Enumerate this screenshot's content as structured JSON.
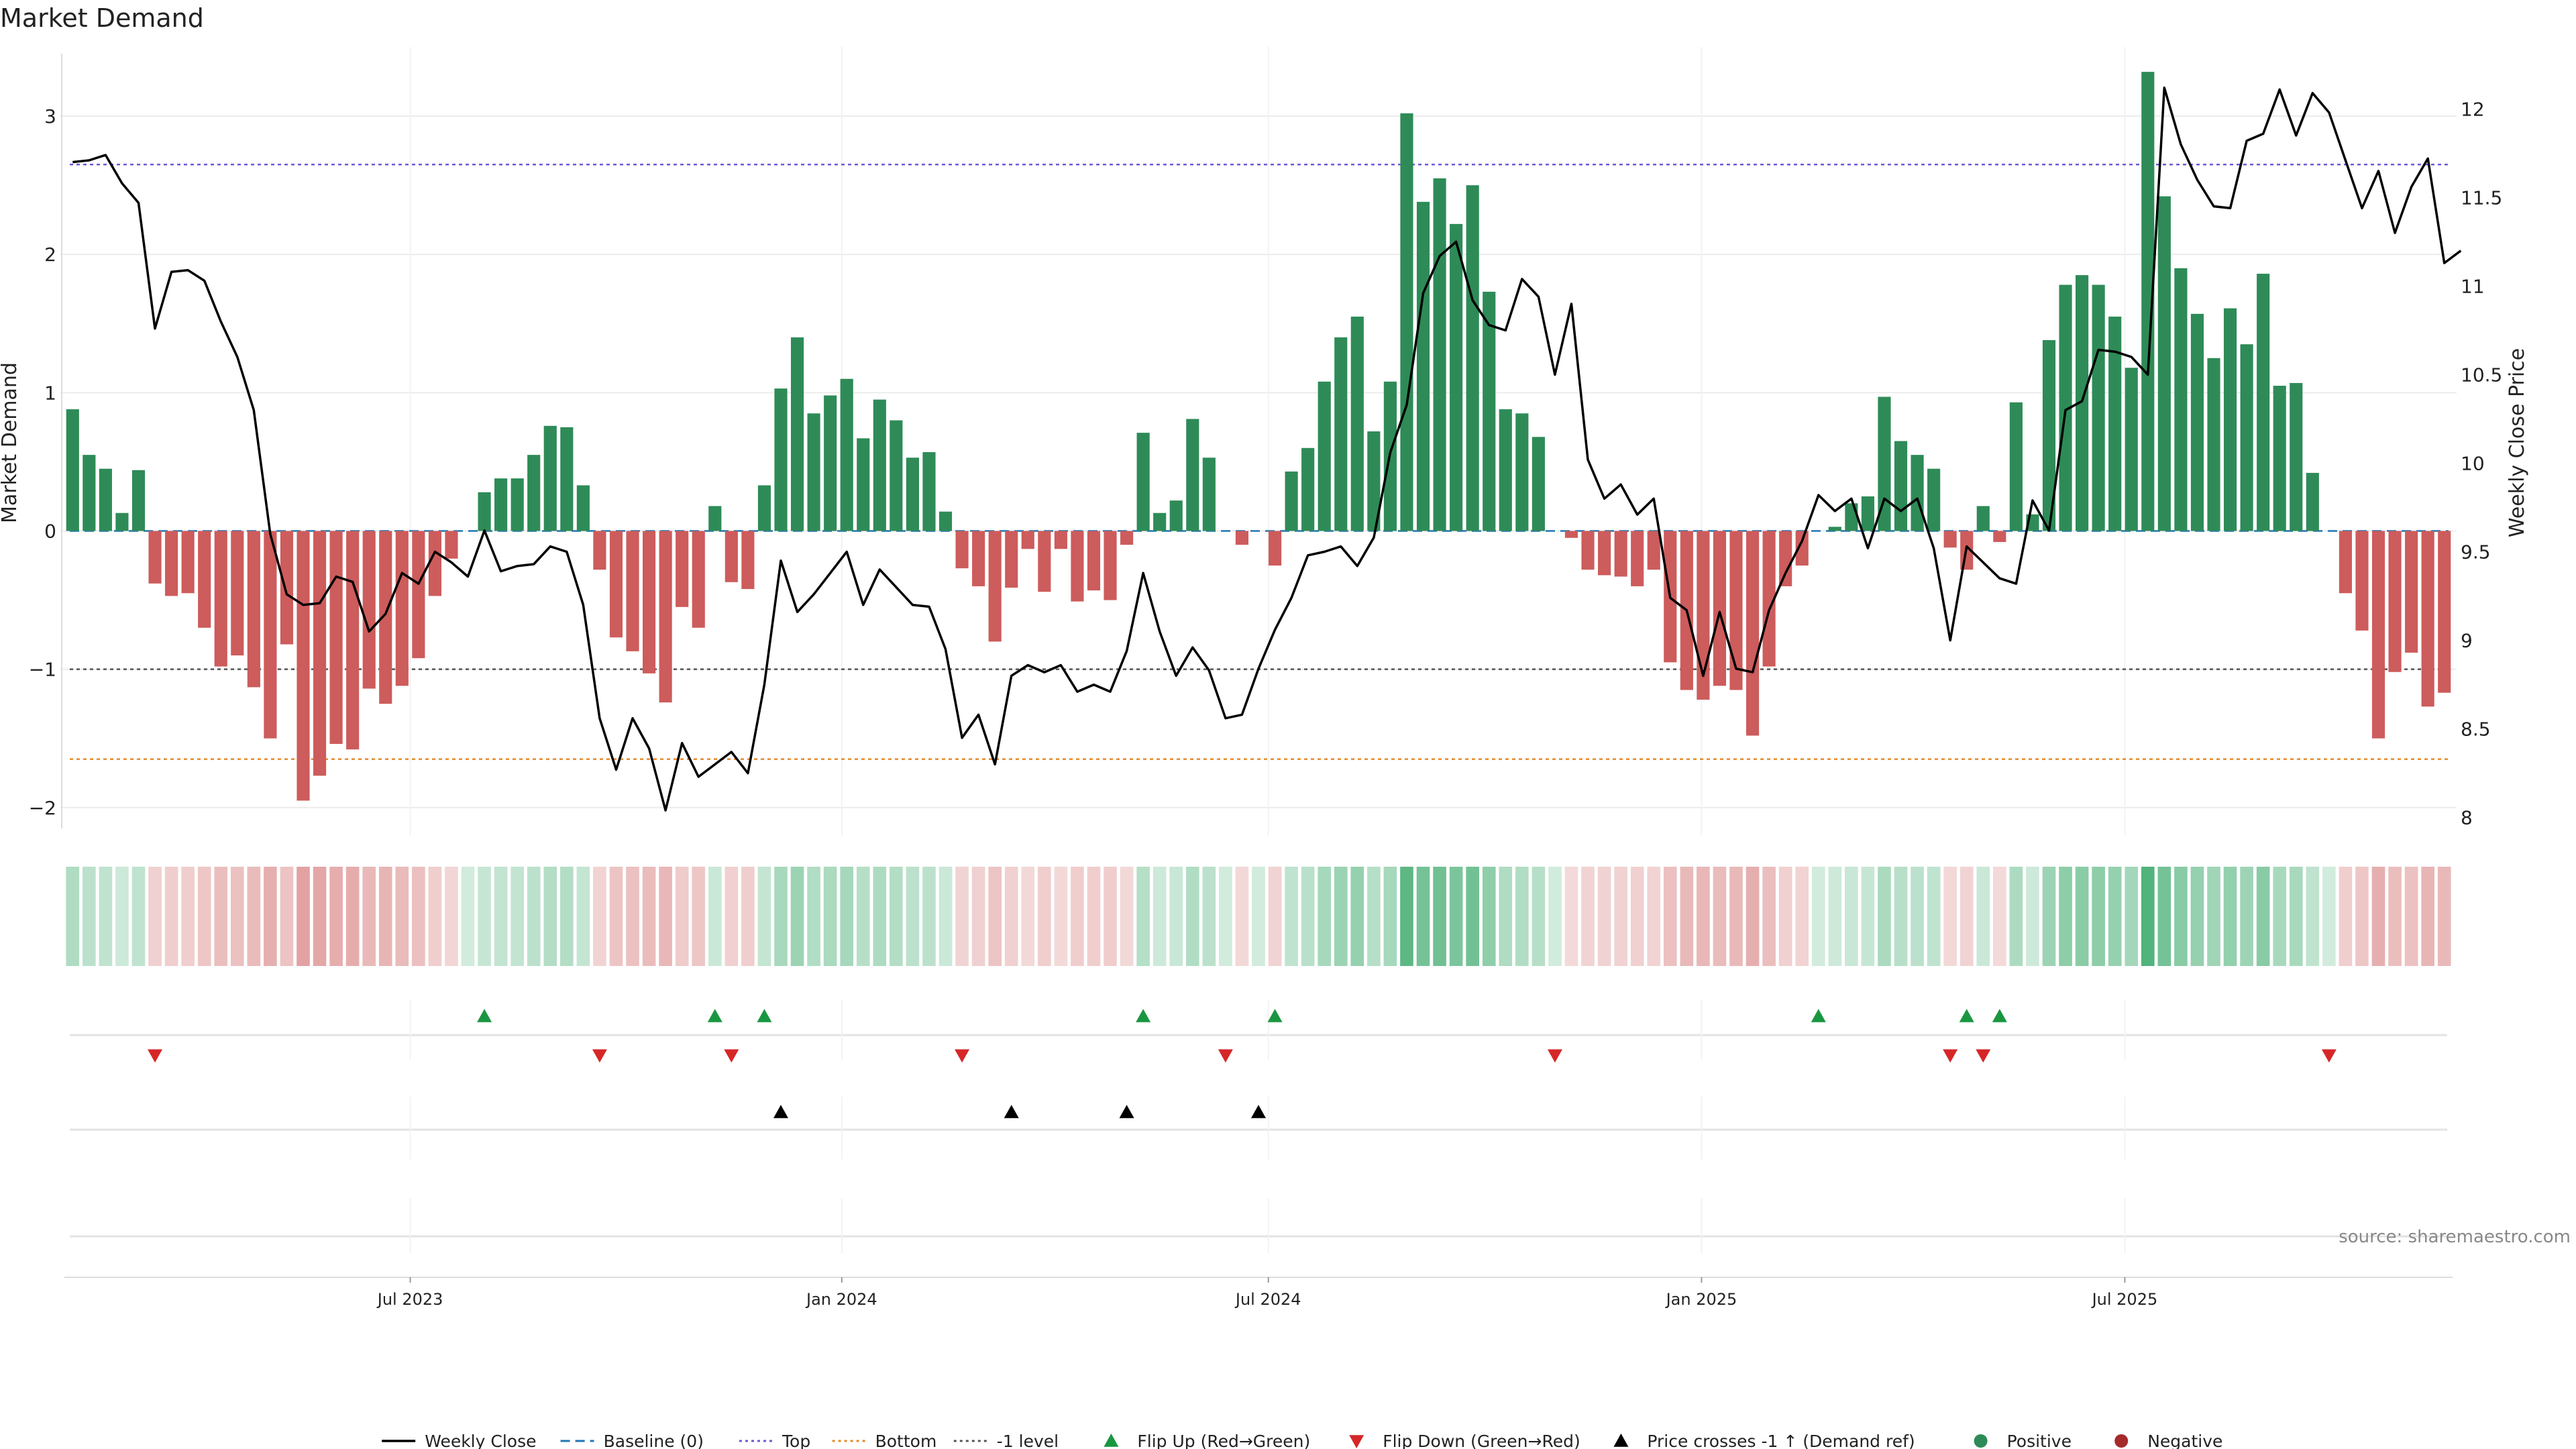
{
  "chart_data": {
    "type": "bar",
    "title": "Market Demand",
    "ylabel_left": "Market Demand",
    "ylabel_right": "Weekly Close Price",
    "source": "source: sharemaestro.com",
    "ylim_left": [
      -2.2,
      3.5
    ],
    "ylim_right": [
      7.9,
      12.35
    ],
    "yticks_left": [
      -2,
      -1,
      0,
      1,
      2,
      3
    ],
    "ytick_labels_left": [
      "−2",
      "−1",
      "0",
      "1",
      "2",
      "3"
    ],
    "yticks_right": [
      8,
      8.5,
      9,
      9.5,
      10,
      10.5,
      11,
      11.5,
      12
    ],
    "ytick_labels_right": [
      "8",
      "8.5",
      "9",
      "9.5",
      "10",
      "10.5",
      "11",
      "11.5",
      "12"
    ],
    "x_ticks": [
      {
        "label": "Jul 2023",
        "week": 20.5
      },
      {
        "label": "Jan 2024",
        "week": 46.7
      },
      {
        "label": "Jul 2024",
        "week": 72.6
      },
      {
        "label": "Jan 2025",
        "week": 98.9
      },
      {
        "label": "Jul 2025",
        "week": 124.6
      }
    ],
    "reference_lines": {
      "top": 2.65,
      "bottom": -1.65,
      "minus_one": -1,
      "baseline": 0
    },
    "series": [
      {
        "name": "Market Demand",
        "kind": "bar",
        "values": [
          0.88,
          0.55,
          0.45,
          0.13,
          0.44,
          -0.38,
          -0.47,
          -0.45,
          -0.7,
          -0.98,
          -0.9,
          -1.13,
          -1.5,
          -0.82,
          -1.95,
          -1.77,
          -1.54,
          -1.58,
          -1.14,
          -1.25,
          -1.12,
          -0.92,
          -0.47,
          -0.2,
          0,
          0.28,
          0.38,
          0.38,
          0.55,
          0.76,
          0.75,
          0.33,
          -0.28,
          -0.77,
          -0.87,
          -1.03,
          -1.24,
          -0.55,
          -0.7,
          0.18,
          -0.37,
          -0.42,
          0.33,
          1.03,
          1.4,
          0.85,
          0.98,
          1.1,
          0.67,
          0.95,
          0.8,
          0.53,
          0.57,
          0.14,
          -0.27,
          -0.4,
          -0.8,
          -0.41,
          -0.13,
          -0.44,
          -0.13,
          -0.51,
          -0.43,
          -0.5,
          -0.1,
          0.71,
          0.13,
          0.22,
          0.81,
          0.53,
          0,
          -0.1,
          0,
          -0.25,
          0.43,
          0.6,
          1.08,
          1.4,
          1.55,
          0.72,
          1.08,
          3.02,
          2.38,
          2.55,
          2.22,
          2.5,
          1.73,
          0.88,
          0.85,
          0.68,
          0,
          -0.05,
          -0.28,
          -0.32,
          -0.33,
          -0.4,
          -0.28,
          -0.95,
          -1.15,
          -1.22,
          -1.12,
          -1.15,
          -1.48,
          -0.98,
          -0.4,
          -0.25,
          0,
          0.03,
          0.2,
          0.25,
          0.97,
          0.65,
          0.55,
          0.45,
          -0.12,
          -0.28,
          0.18,
          -0.08,
          0.93,
          0.12,
          1.38,
          1.78,
          1.85,
          1.78,
          1.55,
          1.18,
          3.32,
          2.42,
          1.9,
          1.57,
          1.25,
          1.61,
          1.35,
          1.86,
          1.05,
          1.07,
          0.42,
          0,
          -0.45,
          -0.72,
          -1.5,
          -1.02,
          -0.88,
          -1.27,
          -1.17
        ]
      },
      {
        "name": "Weekly Close",
        "kind": "line",
        "values": [
          11.7,
          11.71,
          11.74,
          11.58,
          11.47,
          10.76,
          11.08,
          11.09,
          11.03,
          10.8,
          10.6,
          10.3,
          9.6,
          9.26,
          9.2,
          9.21,
          9.36,
          9.33,
          9.05,
          9.15,
          9.38,
          9.32,
          9.5,
          9.44,
          9.36,
          9.62,
          9.39,
          9.42,
          9.43,
          9.53,
          9.5,
          9.2,
          8.56,
          8.27,
          8.56,
          8.39,
          8.04,
          8.42,
          8.23,
          8.3,
          8.37,
          8.25,
          8.75,
          9.45,
          9.16,
          9.26,
          9.38,
          9.5,
          9.2,
          9.4,
          9.3,
          9.2,
          9.19,
          8.95,
          8.45,
          8.58,
          8.3,
          8.8,
          8.86,
          8.82,
          8.86,
          8.71,
          8.75,
          8.71,
          8.94,
          9.38,
          9.05,
          8.8,
          8.96,
          8.83,
          8.56,
          8.58,
          8.84,
          9.06,
          9.24,
          9.48,
          9.5,
          9.53,
          9.42,
          9.58,
          10.06,
          10.33,
          10.96,
          11.17,
          11.25,
          10.92,
          10.78,
          10.75,
          11.04,
          10.94,
          10.5,
          10.9,
          10.02,
          9.8,
          9.88,
          9.71,
          9.8,
          9.24,
          9.17,
          8.8,
          9.16,
          8.84,
          8.82,
          9.17,
          9.38,
          9.56,
          9.82,
          9.73,
          9.8,
          9.52,
          9.8,
          9.73,
          9.8,
          9.52,
          9.0,
          9.53,
          9.44,
          9.35,
          9.32,
          9.79,
          9.62,
          10.3,
          10.35,
          10.64,
          10.63,
          10.6,
          10.5,
          12.12,
          11.8,
          11.6,
          11.45,
          11.44,
          11.82,
          11.86,
          12.11,
          11.85,
          12.09,
          11.98,
          11.71,
          11.44,
          11.65,
          11.3,
          11.56,
          11.72,
          11.13,
          11.2
        ]
      },
      {
        "name": "Flip Up (Red→Green)",
        "kind": "marker",
        "weeks": [
          25,
          39,
          42,
          65,
          73,
          106,
          115,
          117
        ]
      },
      {
        "name": "Flip Down (Green→Red)",
        "kind": "marker",
        "weeks": [
          5,
          32,
          40,
          54,
          70,
          90,
          114,
          116,
          137
        ]
      },
      {
        "name": "Price crosses -1 ↑ (Demand ref)",
        "kind": "marker",
        "weeks": [
          43,
          57,
          64,
          72
        ]
      }
    ],
    "legend": {
      "placement": "bottom",
      "items": [
        {
          "label": "Weekly Close",
          "style": "line",
          "color": "#000000"
        },
        {
          "label": "Baseline (0)",
          "style": "dash",
          "color": "#1f77b4"
        },
        {
          "label": "Top",
          "style": "dot",
          "color": "#6b5bd6"
        },
        {
          "label": "Bottom",
          "style": "dot",
          "color": "#e38b2c"
        },
        {
          "label": "-1 level",
          "style": "dot",
          "color": "#555555"
        },
        {
          "label": "Flip Up (Red→Green)",
          "style": "tri-up",
          "color": "#1a9641"
        },
        {
          "label": "Flip Down (Green→Red)",
          "style": "tri-down",
          "color": "#d62728"
        },
        {
          "label": "Price crosses -1 ↑ (Demand ref)",
          "style": "tri-up",
          "color": "#000000"
        },
        {
          "label": "Positive",
          "style": "circle",
          "color": "#2e8b57"
        },
        {
          "label": "Negative",
          "style": "circle",
          "color": "#a52a2a"
        }
      ]
    },
    "colors": {
      "positive_bar": "#2e8b57",
      "negative_bar": "#cd5c5c",
      "price_line": "#000000",
      "baseline": "#1f77b4",
      "top": "#6b5bd6",
      "bottom": "#e38b2c",
      "minus_one": "#555555",
      "flip_up": "#1a9641",
      "flip_down": "#d62728",
      "cross": "#000000",
      "grid": "#ebebeb",
      "strip_positive": "#2ca25f",
      "strip_negative": "#cd5c5c"
    }
  }
}
